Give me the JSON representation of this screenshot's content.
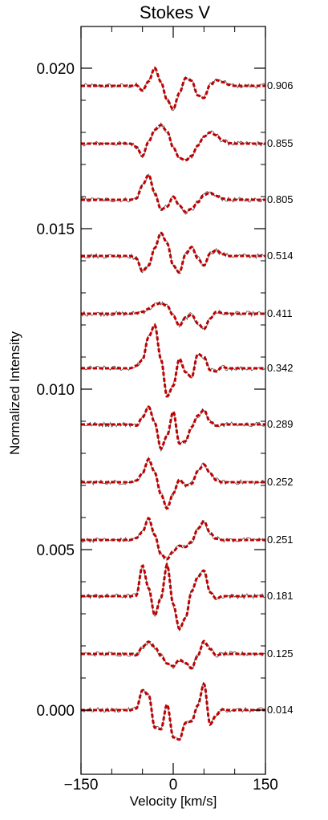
{
  "chart_data": {
    "type": "line",
    "title": "Stokes V",
    "xlabel": "Velocity [km/s]",
    "ylabel": "Normalized Intensity",
    "xlim": [
      -150,
      150
    ],
    "ylim": [
      -0.0015,
      0.0214
    ],
    "xticks": [
      -150,
      0,
      150
    ],
    "xtick_labels": [
      "−150",
      "0",
      "150"
    ],
    "yticks": [
      0.0,
      0.005,
      0.01,
      0.015,
      0.02
    ],
    "ytick_labels": [
      "0.000",
      "0.005",
      "0.010",
      "0.015",
      "0.020"
    ],
    "grid": false,
    "x": [
      -150,
      -140,
      -130,
      -120,
      -110,
      -100,
      -90,
      -80,
      -70,
      -60,
      -50,
      -40,
      -30,
      -20,
      -10,
      0,
      10,
      20,
      30,
      40,
      50,
      60,
      70,
      80,
      90,
      100,
      110,
      120,
      130,
      140,
      150
    ],
    "series": [
      {
        "phase": "0.906",
        "offset": 0.01945,
        "observed_color": "#555555",
        "model_color": "#c00000",
        "model": [
          0,
          0,
          0,
          0,
          0,
          0,
          0,
          0,
          0,
          2e-05,
          -0.00015,
          0.00014,
          0.00056,
          0.00012,
          -0.00044,
          -0.00073,
          -0.00022,
          0.00024,
          0.00016,
          -0.0003,
          -0.00038,
          3e-05,
          0.00018,
          0.00012,
          4e-05,
          0,
          0,
          0,
          0,
          0,
          0
        ]
      },
      {
        "phase": "0.855",
        "offset": 0.01765,
        "observed_color": "#555555",
        "model_color": "#c00000",
        "model": [
          0,
          0,
          0,
          0,
          0,
          0,
          0,
          0,
          0,
          -0.0001,
          -0.00038,
          6e-05,
          0.00043,
          0.00058,
          0.00038,
          -0.00012,
          -0.00045,
          -0.00052,
          -0.00038,
          -6e-05,
          0.00022,
          0.00035,
          0.00026,
          0.0001,
          2e-05,
          0,
          0,
          0,
          0,
          0,
          0
        ]
      },
      {
        "phase": "0.805",
        "offset": 0.0159,
        "observed_color": "#555555",
        "model_color": "#c00000",
        "model": [
          0,
          0,
          0,
          0,
          0,
          0,
          0,
          0,
          0,
          4e-05,
          0.00045,
          0.00078,
          0.0002,
          -0.0003,
          -0.00022,
          0.0001,
          -0.00018,
          -0.00038,
          -0.00028,
          -8e-05,
          0.00015,
          0.00022,
          0.00012,
          4e-05,
          0,
          0,
          0,
          0,
          0,
          0,
          0
        ]
      },
      {
        "phase": "0.514",
        "offset": 0.01415,
        "observed_color": "#555555",
        "model_color": "#c00000",
        "model": [
          0,
          0,
          0,
          0,
          0,
          0,
          0,
          0,
          0,
          -8e-05,
          -0.00048,
          -0.0003,
          0.00025,
          0.00072,
          0.0004,
          -0.0003,
          -0.00052,
          5e-05,
          0.00028,
          -8e-05,
          -0.0003,
          8e-05,
          0.00018,
          6e-05,
          0,
          0,
          0,
          0,
          0,
          0,
          0
        ]
      },
      {
        "phase": "0.411",
        "offset": 0.01235,
        "observed_color": "#555555",
        "model_color": "#c00000",
        "model": [
          0,
          0,
          0,
          0,
          0,
          0,
          0,
          0,
          0,
          2e-05,
          6e-05,
          0.00015,
          0.00028,
          0.00033,
          0.00025,
          -6e-05,
          -0.00038,
          -0.00012,
          -3e-05,
          -0.0003,
          -0.00048,
          -0.00015,
          6e-05,
          2e-05,
          0,
          0,
          0,
          0,
          0,
          0,
          0
        ]
      },
      {
        "phase": "0.342",
        "offset": 0.01065,
        "observed_color": "#555555",
        "model_color": "#c00000",
        "model": [
          0,
          0,
          0,
          0,
          0,
          0,
          0,
          0,
          0,
          8e-05,
          0.00026,
          0.00098,
          0.00135,
          0.00028,
          -0.00088,
          -0.00055,
          0.0003,
          -0.00012,
          -0.00028,
          0.00045,
          0.00035,
          -6e-05,
          -0.0001,
          4e-05,
          0,
          0,
          0,
          0,
          0,
          0,
          0
        ]
      },
      {
        "phase": "0.289",
        "offset": 0.0089,
        "observed_color": "#555555",
        "model_color": "#c00000",
        "model": [
          0,
          0,
          0,
          0,
          0,
          0,
          0,
          0,
          0,
          -4e-05,
          0.00022,
          0.00055,
          5e-05,
          -0.00075,
          -0.00035,
          0.0004,
          -0.0006,
          -0.00052,
          -8e-05,
          0.00028,
          0.00045,
          8e-05,
          -4e-05,
          0,
          0,
          0,
          0,
          0,
          0,
          0,
          0
        ]
      },
      {
        "phase": "0.252",
        "offset": 0.0071,
        "observed_color": "#555555",
        "model_color": "#c00000",
        "model": [
          0,
          0,
          0,
          0,
          0,
          0,
          0,
          0,
          0,
          5e-05,
          0.00028,
          0.00072,
          0.0003,
          -0.00038,
          -0.00082,
          -0.00035,
          8e-05,
          -0.0001,
          -5e-05,
          0.00035,
          0.00055,
          0.00028,
          6e-05,
          0,
          0,
          0,
          0,
          0,
          0,
          0,
          0
        ]
      },
      {
        "phase": "0.251",
        "offset": 0.0053,
        "observed_color": "#555555",
        "model_color": "#c00000",
        "model": [
          0,
          0,
          0,
          0,
          0,
          0,
          0,
          0,
          0,
          6e-05,
          0.00025,
          0.00068,
          0.00015,
          -0.00045,
          -0.0006,
          -0.00035,
          -0.00018,
          -0.00022,
          -5e-05,
          0.00035,
          0.00058,
          0.00022,
          4e-05,
          0,
          0,
          0,
          0,
          0,
          0,
          0,
          0
        ]
      },
      {
        "phase": "0.181",
        "offset": 0.00355,
        "observed_color": "#555555",
        "model_color": "#c00000",
        "model": [
          0,
          0,
          0,
          0,
          0,
          0,
          0,
          0,
          0,
          2e-05,
          0.00095,
          0.00025,
          -0.0006,
          -5e-05,
          0.00098,
          -0.00025,
          -0.00102,
          -0.00068,
          0.00015,
          0.0006,
          0.0008,
          0.00012,
          -8e-05,
          0,
          0,
          0,
          0,
          0,
          0,
          0,
          0
        ]
      },
      {
        "phase": "0.125",
        "offset": 0.00175,
        "observed_color": "#555555",
        "model_color": "#c00000",
        "model": [
          0,
          0,
          0,
          0,
          0,
          0,
          0,
          0,
          0,
          -4e-05,
          0.00022,
          0.00038,
          0.00022,
          -5e-05,
          -0.0003,
          -0.00038,
          -0.00018,
          -0.00028,
          -0.00045,
          -5e-05,
          0.0004,
          0.00015,
          -5e-05,
          0,
          0,
          0,
          0,
          0,
          0,
          0,
          0
        ]
      },
      {
        "phase": "0.014",
        "offset": 0.0,
        "observed_color": "#555555",
        "model_color": "#c00000",
        "model": [
          0,
          0,
          0,
          0,
          0,
          0,
          0,
          0,
          0,
          5e-05,
          0.00062,
          0.00048,
          -0.00055,
          -0.0006,
          0.00018,
          -0.00085,
          -0.00092,
          -0.0004,
          -0.00035,
          0.00015,
          0.00082,
          -0.00045,
          -0.00015,
          2e-05,
          0,
          0,
          0,
          0,
          0,
          0,
          0
        ]
      }
    ]
  }
}
